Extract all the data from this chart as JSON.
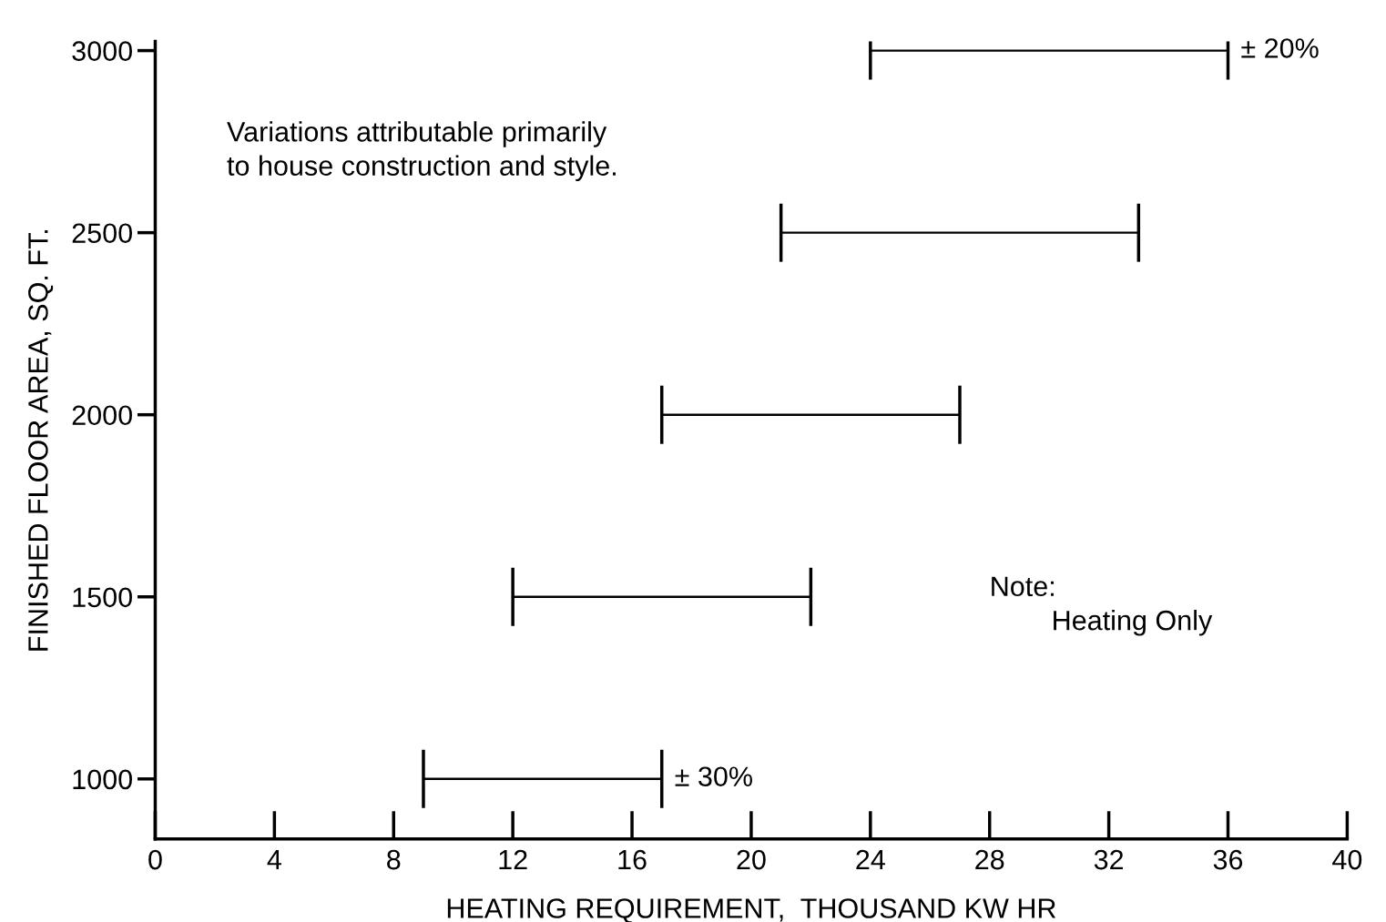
{
  "chart_data": {
    "type": "bar",
    "orientation": "horizontal",
    "xlabel": "HEATING REQUIREMENT,  THOUSAND KW HR",
    "ylabel": "FINISHED FLOOR AREA, SQ. FT.",
    "categories": [
      "3000",
      "2500",
      "2000",
      "1500",
      "1000"
    ],
    "base": [
      24,
      21,
      17,
      12,
      9
    ],
    "values": [
      12,
      12,
      10,
      10,
      8
    ],
    "color": "#000000",
    "xlim": [
      0,
      40
    ],
    "xticks": [
      0,
      4,
      8,
      12,
      16,
      20,
      24,
      28,
      32,
      36,
      40
    ],
    "grid": false,
    "annotations": [
      {
        "text": "± 20%",
        "x": 36,
        "y": "3000"
      },
      {
        "text": "± 30%",
        "x": 17,
        "y": "1000"
      },
      "Variations attributable primarily\nto house construction and style.",
      "Note:\n        Heating Only"
    ]
  }
}
